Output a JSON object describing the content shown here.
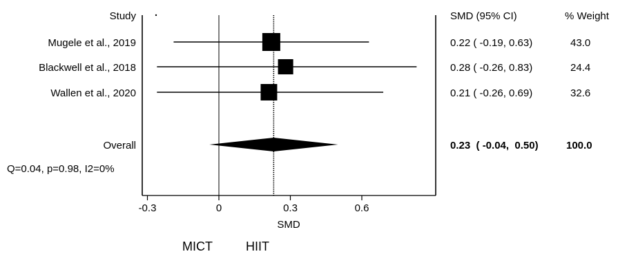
{
  "chart_data": {
    "type": "forest",
    "headers": {
      "study": "Study",
      "estimate": "SMD (95% CI)",
      "weight": "% Weight"
    },
    "xlabel": "SMD",
    "xlim": [
      -0.3,
      0.9
    ],
    "x_ticks": [
      {
        "value": -0.3,
        "label": "-0.3"
      },
      {
        "value": 0,
        "label": "0"
      },
      {
        "value": 0.3,
        "label": "0.3"
      },
      {
        "value": 0.6,
        "label": "0.6"
      }
    ],
    "null_value": 0,
    "direction_labels": {
      "left": "MICT",
      "right": "HIIT"
    },
    "studies": [
      {
        "name": "Mugele et al., 2019",
        "smd": 0.22,
        "lower": -0.19,
        "upper": 0.63,
        "ci_text": "0.22  ( -0.19,  0.63)",
        "weight": 43.0,
        "weight_text": "43.0"
      },
      {
        "name": "Blackwell et al., 2018",
        "smd": 0.28,
        "lower": -0.26,
        "upper": 0.83,
        "ci_text": "0.28  ( -0.26,  0.83)",
        "weight": 24.4,
        "weight_text": "24.4"
      },
      {
        "name": "Wallen et al., 2020",
        "smd": 0.21,
        "lower": -0.26,
        "upper": 0.69,
        "ci_text": "0.21  ( -0.26,  0.69)",
        "weight": 32.6,
        "weight_text": "32.6"
      }
    ],
    "overall": {
      "name": "Overall",
      "smd": 0.23,
      "lower": -0.04,
      "upper": 0.5,
      "ci_text": "0.23  ( -0.04,  0.50)",
      "weight": 100.0,
      "weight_text": "100.0"
    },
    "heterogeneity": "Q=0.04, p=0.98, I2=0%"
  }
}
